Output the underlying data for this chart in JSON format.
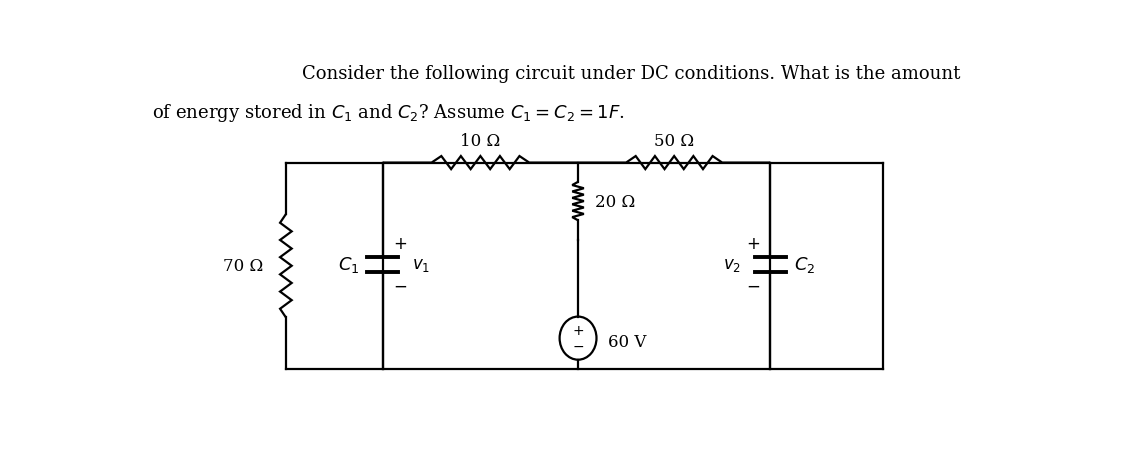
{
  "title_line1": "Consider the following circuit under DC conditions. What is the amount",
  "title_line2": "of energy stored in $C_1$ and $C_2$? Assume $C_1 = C_2 = 1F$.",
  "bg_color": "#ffffff",
  "fig_width": 11.4,
  "fig_height": 4.52,
  "resistor_70": "70 Ω",
  "resistor_10": "10 Ω",
  "resistor_50": "50 Ω",
  "resistor_20": "20 Ω",
  "voltage_source": "60 V",
  "cap1_label": "$C_1$",
  "cap2_label": "$C_2$",
  "v1_label": "$v_1$",
  "v2_label": "$v_2$",
  "plus": "+",
  "minus": "−",
  "fontsize_title": 13,
  "fontsize_labels": 12,
  "fontsize_cap": 13,
  "lw": 1.6
}
